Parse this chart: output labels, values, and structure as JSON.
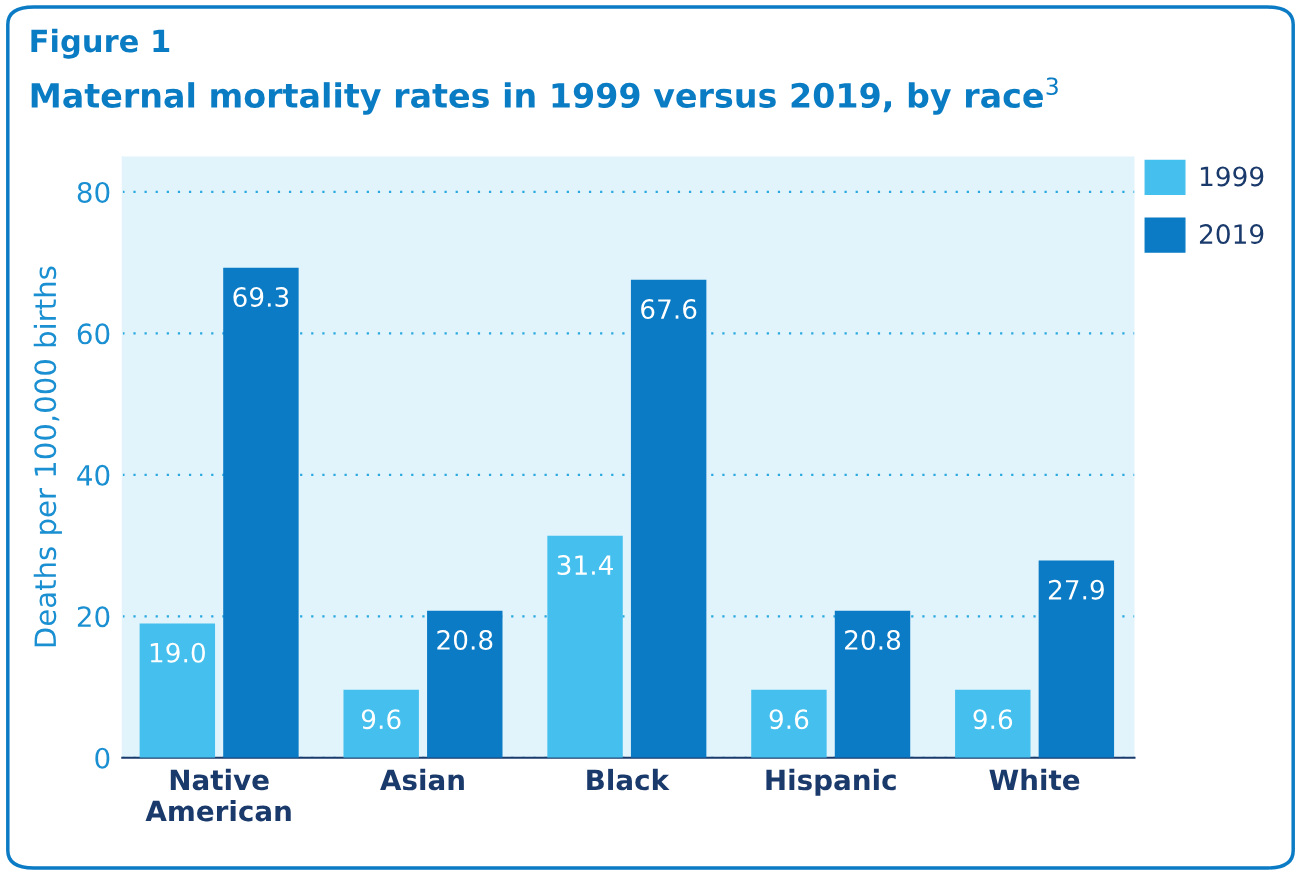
{
  "chart_data": {
    "type": "bar",
    "title": "Figure 1",
    "subtitle": "Maternal mortality rates in 1999 versus 2019, by race$^{3}$",
    "ylabel": "Deaths per 100,000 births",
    "categories": [
      "Native\nAmerican",
      "Asian",
      "Black",
      "Hispanic",
      "White"
    ],
    "series": [
      {
        "name": "1999",
        "color": "#45c0ee",
        "values": [
          19.0,
          9.6,
          31.4,
          9.6,
          9.6
        ],
        "value_labels": [
          "19.0",
          "9.6",
          "31.4",
          "9.6",
          "9.6"
        ]
      },
      {
        "name": "2019",
        "color": "#0a7bc4",
        "values": [
          69.3,
          20.8,
          67.6,
          20.8,
          27.9
        ],
        "value_labels": [
          "69.3",
          "20.8",
          "67.6",
          "20.8",
          "27.9"
        ]
      }
    ],
    "ylim": [
      0,
      85
    ],
    "yticks": [
      0,
      20,
      40,
      60,
      80
    ],
    "grid": "y",
    "legend": "top right"
  }
}
